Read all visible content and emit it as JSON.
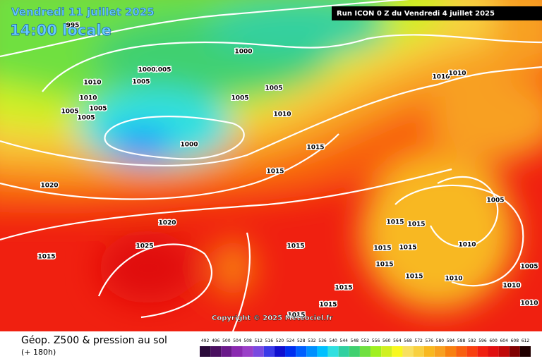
{
  "header": {
    "date": "Vendredi 11 juillet 2025",
    "time": "14:00 locale",
    "run": "Run ICON 0 Z du Vendredi 4 juillet 2025"
  },
  "copyright": "Copyright © 2025 Meteociel.fr",
  "legend": {
    "title": "Géop. Z500 & pression au sol",
    "lead": "(+ 180h)"
  },
  "scale": {
    "labels": [
      492,
      496,
      500,
      504,
      508,
      512,
      516,
      520,
      524,
      528,
      532,
      536,
      540,
      544,
      548,
      552,
      556,
      560,
      564,
      568,
      572,
      576,
      580,
      584,
      588,
      592,
      596,
      600,
      604,
      608,
      612
    ],
    "colors": [
      "#2a0a3a",
      "#4a1060",
      "#6a1a8a",
      "#8a2ab0",
      "#9a40c8",
      "#7a4ae0",
      "#3a3ae8",
      "#1010d0",
      "#0030f0",
      "#0060ff",
      "#0090ff",
      "#00c0ff",
      "#30e0e0",
      "#30d0a0",
      "#40d070",
      "#70e040",
      "#a0f020",
      "#d0f020",
      "#f8f820",
      "#f8e060",
      "#f8d040",
      "#f8b820",
      "#f8a020",
      "#f88010",
      "#f86010",
      "#f84010",
      "#f02010",
      "#e01010",
      "#c00808",
      "#800000",
      "#200000"
    ]
  },
  "isobars": {
    "labels": [
      "995",
      "1000",
      "1005",
      "1010",
      "1010",
      "1005",
      "1005",
      "1005",
      "1005",
      "1000",
      "1005",
      "1005",
      "1010",
      "1000",
      "1015",
      "1015",
      "1020",
      "1020",
      "1025",
      "1015",
      "1015",
      "1015",
      "1015",
      "1015",
      "1015",
      "1005",
      "1010",
      "1010",
      "1010",
      "1015",
      "1015",
      "1015",
      "1015",
      "1010",
      "1010",
      "1005",
      "1010",
      "1015"
    ]
  }
}
